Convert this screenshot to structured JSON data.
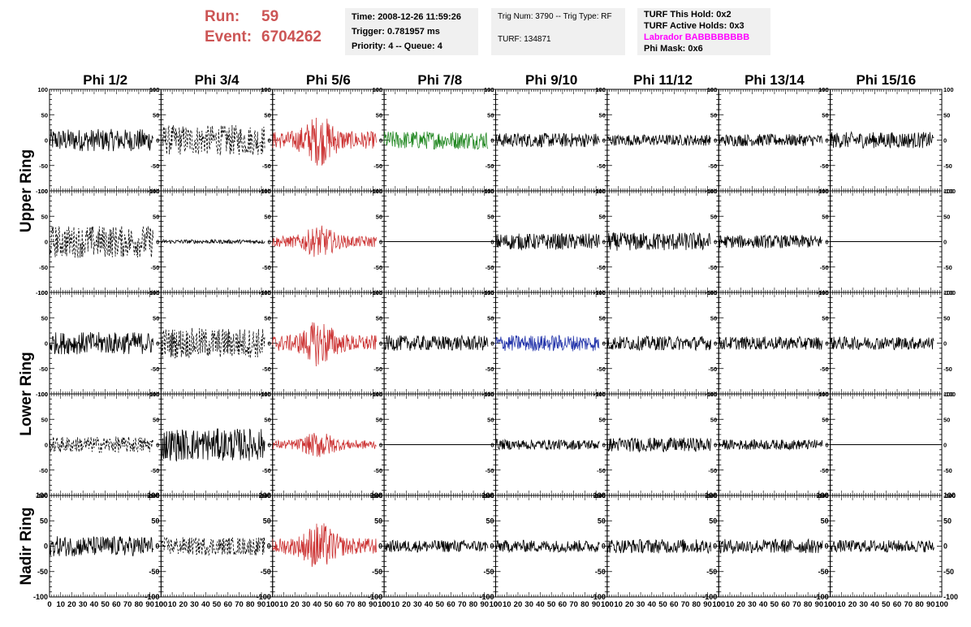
{
  "header": {
    "run_label": "Run:",
    "run_value": "59",
    "event_label": "Event:",
    "event_value": "6704262",
    "time": "Time: 2008-12-26 11:59:26",
    "trigger": "Trigger: 0.781957 ms",
    "priority": "Priority: 4 -- Queue: 4",
    "trig_num": "Trig Num: 3790 -- Trig Type: RF",
    "turf": "TURF: 134871",
    "turf_this_hold": "TURF This Hold: 0x2",
    "turf_active_holds": "TURF Active Holds: 0x3",
    "labrador": "Labrador BABBBBBBBB",
    "phi_mask": "Phi Mask: 0x6"
  },
  "chart_data": {
    "type": "line",
    "columns": [
      "Phi 1/2",
      "Phi 3/4",
      "Phi 5/6",
      "Phi 7/8",
      "Phi 9/10",
      "Phi 11/12",
      "Phi 13/14",
      "Phi 15/16"
    ],
    "ring_labels": [
      "Upper Ring",
      "Lower Ring",
      "Nadir Ring"
    ],
    "ylim": [
      -100,
      100
    ],
    "y_ticks": [
      -100,
      -50,
      0,
      50,
      100
    ],
    "xlim": [
      0,
      100
    ],
    "x_ticks": [
      0,
      10,
      20,
      30,
      40,
      50,
      60,
      70,
      80,
      90,
      100
    ],
    "colors": {
      "black": "#000000",
      "red": "#cc3333",
      "green": "#228822",
      "blue": "#2233aa"
    },
    "rows": [
      [
        {
          "style": "solid",
          "color": "black",
          "amp": 22
        },
        {
          "style": "dashed",
          "color": "black",
          "amp": 30
        },
        {
          "style": "solid",
          "color": "red",
          "amp": 38
        },
        {
          "style": "solid",
          "color": "green",
          "amp": 18
        },
        {
          "style": "solid",
          "color": "black",
          "amp": 14
        },
        {
          "style": "solid",
          "color": "black",
          "amp": 11
        },
        {
          "style": "solid",
          "color": "black",
          "amp": 12
        },
        {
          "style": "solid",
          "color": "black",
          "amp": 16
        }
      ],
      [
        {
          "style": "dashed",
          "color": "black",
          "amp": 32
        },
        {
          "style": "solid",
          "color": "black",
          "amp": 4
        },
        {
          "style": "solid",
          "color": "red",
          "amp": 24
        },
        {
          "style": "flat",
          "color": "black",
          "amp": 0
        },
        {
          "style": "solid",
          "color": "black",
          "amp": 16
        },
        {
          "style": "solid",
          "color": "black",
          "amp": 18
        },
        {
          "style": "solid",
          "color": "black",
          "amp": 13
        },
        {
          "style": "flat",
          "color": "black",
          "amp": 0
        }
      ],
      [
        {
          "style": "solid",
          "color": "black",
          "amp": 22
        },
        {
          "style": "dashed",
          "color": "black",
          "amp": 30
        },
        {
          "style": "solid",
          "color": "red",
          "amp": 35
        },
        {
          "style": "solid",
          "color": "black",
          "amp": 15
        },
        {
          "style": "solid",
          "color": "blue",
          "amp": 16
        },
        {
          "style": "solid",
          "color": "black",
          "amp": 14
        },
        {
          "style": "solid",
          "color": "black",
          "amp": 13
        },
        {
          "style": "solid",
          "color": "black",
          "amp": 13
        }
      ],
      [
        {
          "style": "dashed",
          "color": "black",
          "amp": 16
        },
        {
          "style": "solid",
          "color": "black",
          "amp": 32
        },
        {
          "style": "solid",
          "color": "red",
          "amp": 20
        },
        {
          "style": "flat",
          "color": "black",
          "amp": 0
        },
        {
          "style": "solid",
          "color": "black",
          "amp": 10
        },
        {
          "style": "solid",
          "color": "black",
          "amp": 14
        },
        {
          "style": "solid",
          "color": "black",
          "amp": 10
        },
        {
          "style": "flat",
          "color": "black",
          "amp": 0
        }
      ],
      [
        {
          "style": "solid",
          "color": "black",
          "amp": 20
        },
        {
          "style": "dashed",
          "color": "black",
          "amp": 18
        },
        {
          "style": "solid",
          "color": "red",
          "amp": 36
        },
        {
          "style": "solid",
          "color": "black",
          "amp": 12
        },
        {
          "style": "solid",
          "color": "black",
          "amp": 12
        },
        {
          "style": "solid",
          "color": "black",
          "amp": 14
        },
        {
          "style": "solid",
          "color": "black",
          "amp": 14
        },
        {
          "style": "solid",
          "color": "black",
          "amp": 12
        }
      ]
    ]
  }
}
